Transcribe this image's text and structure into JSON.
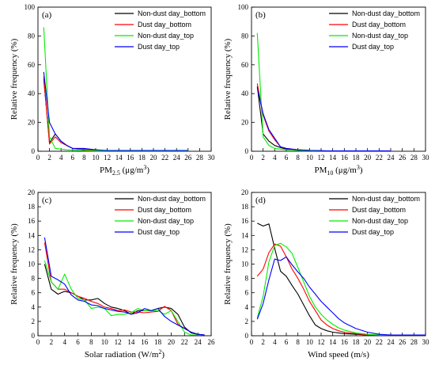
{
  "colors": {
    "Non-dust day_bottom": "#000000",
    "Dust day_bottom": "#ff0000",
    "Non-dust day_top": "#00ee00",
    "Dust day_top": "#0000ff"
  },
  "chart_data": [
    {
      "type": "line",
      "panel": "(a)",
      "xlabel": "PM",
      "xlabel_sub": "2.5",
      "xlabel_unit": " (μg/m",
      "xlabel_sup": "3",
      "xlabel_end": ")",
      "ylabel": "Relative frequency (%)",
      "xlim": [
        0,
        30
      ],
      "ylim": [
        0,
        100
      ],
      "xticks": [
        "0",
        "2",
        "4",
        "6",
        "8",
        "10",
        "12",
        "14",
        "16",
        "18",
        "20",
        "22",
        "24",
        "26",
        "28",
        "30"
      ],
      "yticks": [
        "0",
        "20",
        "40",
        "60",
        "80",
        "100"
      ],
      "legend": "top-right",
      "series": [
        {
          "name": "Non-dust day_bottom",
          "x": [
            1,
            2,
            3,
            4,
            5,
            6,
            7,
            8,
            9,
            10,
            11,
            12,
            13,
            14,
            15,
            16,
            17,
            18,
            19,
            20,
            21,
            22,
            23,
            24,
            25,
            26
          ],
          "y": [
            50,
            6,
            12,
            7,
            4,
            2,
            1.5,
            1.2,
            1,
            0.8,
            0.6,
            0.5,
            0.4,
            0.3,
            0.3,
            0.3,
            0.3,
            0.3,
            0.3,
            0.3,
            0.3,
            0.3,
            0.3,
            0.3,
            0.3,
            0.3
          ]
        },
        {
          "name": "Dust day_bottom",
          "x": [
            1,
            2,
            3,
            4,
            5,
            6,
            7,
            8,
            9,
            10,
            11,
            12,
            13,
            14,
            15,
            16,
            17,
            18,
            19,
            20,
            21,
            22,
            23,
            24,
            25,
            26
          ],
          "y": [
            52,
            5,
            10,
            6,
            4,
            2,
            1.5,
            1.2,
            1,
            0.8,
            0.6,
            0.5,
            0.4,
            0.3,
            0.3,
            0.3,
            0.3,
            0.3,
            0.3,
            0.3,
            0.3,
            0.3,
            0.3,
            0.3,
            0.3,
            0.3
          ]
        },
        {
          "name": "Non-dust day_top",
          "x": [
            1,
            2,
            3,
            4,
            5,
            6,
            7,
            8,
            9,
            10,
            11,
            12,
            13,
            14,
            15,
            16,
            17,
            18,
            19,
            20,
            21,
            22,
            23,
            24,
            25,
            26
          ],
          "y": [
            86,
            10,
            2,
            1.5,
            1,
            0.8,
            0.6,
            0.5,
            0.4,
            0.3,
            0.3,
            0.2,
            0.2,
            0.2,
            0.2,
            0.2,
            0.2,
            0.2,
            0.2,
            0.2,
            0.2,
            0.2,
            0.2,
            0.2,
            0.2,
            0.2
          ]
        },
        {
          "name": "Dust day_top",
          "x": [
            1,
            2,
            3,
            4,
            5,
            6,
            7,
            8,
            9,
            10,
            11,
            12,
            13,
            14,
            15,
            16,
            17,
            18,
            19,
            20,
            21,
            22,
            23,
            24,
            25,
            26
          ],
          "y": [
            55,
            20,
            12,
            7,
            4,
            2,
            2,
            2,
            1.5,
            1,
            0.7,
            0.5,
            0.5,
            0.5,
            0.5,
            0.5,
            0.5,
            0.5,
            0.5,
            0.5,
            0.5,
            0.5,
            0.5,
            0.5,
            0.5,
            0.5
          ]
        }
      ]
    },
    {
      "type": "line",
      "panel": "(b)",
      "xlabel": "PM",
      "xlabel_sub": "10",
      "xlabel_unit": " (μg/m",
      "xlabel_sup": "3",
      "xlabel_end": ")",
      "ylabel": "Relative frequency (%)",
      "xlim": [
        0,
        30
      ],
      "ylim": [
        0,
        100
      ],
      "xticks": [
        "0",
        "2",
        "4",
        "6",
        "8",
        "10",
        "12",
        "14",
        "16",
        "18",
        "20",
        "22",
        "24",
        "26",
        "28",
        "30"
      ],
      "yticks": [
        "0",
        "20",
        "40",
        "60",
        "80",
        "100"
      ],
      "legend": "top-right",
      "series": [
        {
          "name": "Non-dust day_bottom",
          "x": [
            1,
            2,
            3,
            4,
            5,
            6,
            7,
            8,
            9,
            10,
            11,
            12,
            13,
            14,
            15,
            16,
            17,
            18,
            19,
            20,
            21,
            22,
            23,
            24
          ],
          "y": [
            45,
            12,
            7,
            4,
            2.5,
            1.5,
            1,
            0.8,
            0.6,
            0.5,
            0.4,
            0.3,
            0.3,
            0.3,
            0.2,
            0.2,
            0.2,
            0.2,
            0.2,
            0.2,
            0.2,
            0.2,
            0.2,
            0.2
          ]
        },
        {
          "name": "Dust day_bottom",
          "x": [
            1,
            2,
            3,
            4,
            5,
            6,
            7,
            8,
            9,
            10,
            11,
            12,
            13,
            14,
            15,
            16,
            17,
            18,
            19,
            20,
            21,
            22,
            23,
            24
          ],
          "y": [
            47,
            25,
            14,
            8,
            3,
            2,
            1.5,
            1,
            0.8,
            0.6,
            0.5,
            0.4,
            0.3,
            0.3,
            0.3,
            0.3,
            0.3,
            0.3,
            0.3,
            0.3,
            0.3,
            0.3,
            0.3,
            0.3
          ]
        },
        {
          "name": "Non-dust day_top",
          "x": [
            1,
            2,
            3,
            4,
            5,
            6,
            7,
            8,
            9,
            10,
            11,
            12,
            13,
            14,
            15,
            16,
            17,
            18,
            19,
            20,
            21,
            22,
            23,
            24
          ],
          "y": [
            82,
            10,
            4,
            2,
            1.5,
            1,
            0.8,
            0.6,
            0.5,
            0.4,
            0.3,
            0.3,
            0.2,
            0.2,
            0.2,
            0.2,
            0.2,
            0.2,
            0.2,
            0.2,
            0.2,
            0.2,
            0.2,
            0.2
          ]
        },
        {
          "name": "Dust day_top",
          "x": [
            1,
            2,
            3,
            4,
            5,
            6,
            7,
            8,
            9,
            10,
            11,
            12,
            13,
            14,
            15,
            16,
            17,
            18,
            19,
            20,
            21,
            22,
            23,
            24
          ],
          "y": [
            44,
            26,
            15,
            9,
            3,
            2,
            1.5,
            1,
            0.8,
            0.6,
            0.5,
            0.4,
            0.3,
            0.3,
            0.3,
            0.3,
            0.3,
            0.3,
            0.3,
            0.3,
            0.3,
            0.3,
            0.3,
            0.3
          ]
        }
      ]
    },
    {
      "type": "line",
      "panel": "(c)",
      "xlabel": "Solar radiation (W/m",
      "xlabel_sub": "",
      "xlabel_unit": "",
      "xlabel_sup": "2",
      "xlabel_end": ")",
      "ylabel": "Relative frequency (%)",
      "xlim": [
        0,
        26
      ],
      "ylim": [
        0,
        20
      ],
      "xticks": [
        "0",
        "2",
        "4",
        "6",
        "8",
        "10",
        "12",
        "14",
        "16",
        "18",
        "20",
        "22",
        "24",
        "26"
      ],
      "yticks": [
        "0",
        "2",
        "4",
        "6",
        "8",
        "10",
        "12",
        "14",
        "16",
        "18",
        "20"
      ],
      "legend": "top-right",
      "series": [
        {
          "name": "Non-dust day_bottom",
          "x": [
            1,
            2,
            3,
            4,
            5,
            6,
            7,
            8,
            9,
            10,
            11,
            12,
            13,
            14,
            15,
            16,
            17,
            18,
            19,
            20,
            21,
            22,
            23,
            24,
            25
          ],
          "y": [
            10,
            6.5,
            5.8,
            6.2,
            6.0,
            5.5,
            5.0,
            5.0,
            5.2,
            4.5,
            4.0,
            3.8,
            3.5,
            3.0,
            3.5,
            3.5,
            3.5,
            3.8,
            4.0,
            3.8,
            3.0,
            1.2,
            0.4,
            0.2,
            0.1
          ]
        },
        {
          "name": "Dust day_bottom",
          "x": [
            1,
            2,
            3,
            4,
            5,
            6,
            7,
            8,
            9,
            10,
            11,
            12,
            13,
            14,
            15,
            16,
            17,
            18,
            19,
            20,
            21,
            22,
            23,
            24,
            25
          ],
          "y": [
            13,
            7.5,
            6.5,
            6.5,
            6.0,
            5.5,
            5.2,
            4.8,
            4.5,
            4.0,
            3.8,
            3.5,
            3.6,
            3.3,
            3.3,
            3.2,
            3.3,
            3.4,
            4.1,
            3.5,
            1.6,
            1.0,
            0.5,
            0.2,
            0.1
          ]
        },
        {
          "name": "Non-dust day_top",
          "x": [
            1,
            2,
            3,
            4,
            5,
            6,
            7,
            8,
            9,
            10,
            11,
            12,
            13,
            14,
            15,
            16,
            17,
            18,
            19,
            20,
            21,
            22,
            23,
            24,
            25
          ],
          "y": [
            10.5,
            7.5,
            6.5,
            8.6,
            6.5,
            5.2,
            5.0,
            3.8,
            4.0,
            3.8,
            2.8,
            3.0,
            3.0,
            3.2,
            3.8,
            3.5,
            3.5,
            3.5,
            3.0,
            3.5,
            2.0,
            0.5,
            0.1,
            0.1,
            0.1
          ]
        },
        {
          "name": "Dust day_top",
          "x": [
            1,
            2,
            3,
            4,
            5,
            6,
            7,
            8,
            9,
            10,
            11,
            12,
            13,
            14,
            15,
            16,
            17,
            18,
            19,
            20,
            21,
            22,
            23,
            24,
            25
          ],
          "y": [
            13.7,
            8.3,
            7.8,
            7.2,
            5.7,
            5.0,
            4.8,
            4.3,
            4.2,
            3.8,
            3.6,
            3.4,
            3.3,
            3.0,
            3.2,
            3.8,
            3.5,
            3.8,
            2.7,
            2.0,
            1.5,
            1.0,
            0.5,
            0.2,
            0.1
          ]
        }
      ]
    },
    {
      "type": "line",
      "panel": "(d)",
      "xlabel": "Wind speed (m/s)",
      "xlabel_sub": "",
      "xlabel_unit": "",
      "xlabel_sup": "",
      "xlabel_end": "",
      "ylabel": "Relative frequency (%)",
      "xlim": [
        0,
        30
      ],
      "ylim": [
        0,
        20
      ],
      "xticks": [
        "0",
        "2",
        "4",
        "6",
        "8",
        "10",
        "12",
        "14",
        "16",
        "18",
        "20",
        "22",
        "24",
        "26",
        "28",
        "30"
      ],
      "yticks": [
        "0",
        "2",
        "4",
        "6",
        "8",
        "10",
        "12",
        "14",
        "16",
        "18",
        "20"
      ],
      "legend": "top-right",
      "series": [
        {
          "name": "Non-dust day_bottom",
          "x": [
            1,
            2,
            3,
            4,
            5,
            6,
            7,
            8,
            9,
            10,
            11,
            12,
            13,
            14,
            15,
            16,
            18,
            20,
            22,
            24,
            26,
            28,
            30
          ],
          "y": [
            15.7,
            15.3,
            15.6,
            12.2,
            9.0,
            8.3,
            7.0,
            5.8,
            4.3,
            2.8,
            1.5,
            1.0,
            0.7,
            0.5,
            0.4,
            0.3,
            0.2,
            0.1,
            0.1,
            0.1,
            0.1,
            0.1,
            0.1
          ]
        },
        {
          "name": "Dust day_bottom",
          "x": [
            1,
            2,
            3,
            4,
            5,
            6,
            7,
            8,
            9,
            10,
            11,
            12,
            13,
            14,
            15,
            16,
            18,
            20,
            22,
            24,
            26,
            28,
            30
          ],
          "y": [
            8.3,
            9.3,
            11.6,
            12.8,
            12.5,
            11.0,
            9.3,
            8.0,
            6.5,
            4.8,
            3.5,
            2.2,
            1.5,
            1.0,
            0.7,
            0.5,
            0.3,
            0.1,
            0.1,
            0.1,
            0.1,
            0.1,
            0.1
          ]
        },
        {
          "name": "Non-dust day_top",
          "x": [
            1,
            2,
            3,
            4,
            5,
            6,
            7,
            8,
            9,
            10,
            11,
            12,
            13,
            14,
            15,
            16,
            18,
            20,
            22,
            24,
            26,
            28,
            30
          ],
          "y": [
            2.5,
            5.5,
            10.3,
            12.6,
            12.9,
            12.4,
            11.5,
            9.5,
            7.5,
            5.5,
            4.0,
            3.0,
            2.2,
            1.6,
            1.1,
            0.8,
            0.4,
            0.2,
            0.1,
            0.1,
            0.1,
            0.1,
            0.1
          ]
        },
        {
          "name": "Dust day_top",
          "x": [
            1,
            2,
            3,
            4,
            5,
            6,
            7,
            8,
            9,
            10,
            11,
            12,
            13,
            14,
            15,
            16,
            18,
            20,
            22,
            24,
            26,
            28,
            30
          ],
          "y": [
            2.3,
            4.5,
            7.8,
            10.7,
            10.5,
            11.0,
            9.9,
            8.9,
            8.0,
            6.8,
            5.8,
            4.8,
            4.0,
            3.2,
            2.4,
            1.8,
            1.0,
            0.5,
            0.2,
            0.1,
            0.1,
            0.1,
            0.1
          ]
        }
      ]
    }
  ]
}
